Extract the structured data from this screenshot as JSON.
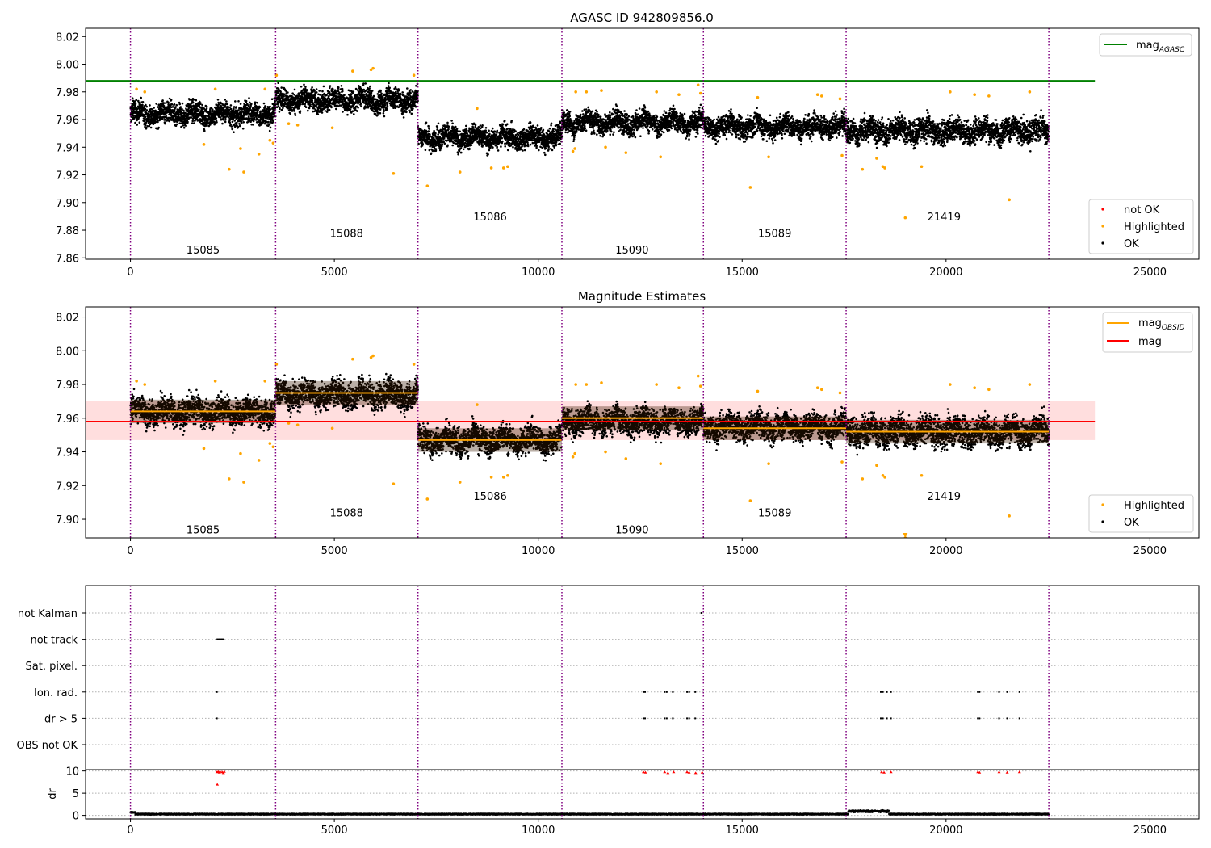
{
  "chart_data": [
    {
      "type": "scatter",
      "title": "AGASC ID 942809856.0",
      "xlim": [
        -1100,
        26200
      ],
      "ylim": [
        7.859,
        8.026
      ],
      "xticks": [
        0,
        5000,
        10000,
        15000,
        20000,
        25000
      ],
      "xtick_labels": [
        "0",
        "5000",
        "10000",
        "15000",
        "20000",
        "25000"
      ],
      "yticks": [
        7.86,
        7.88,
        7.9,
        7.92,
        7.94,
        7.96,
        7.98,
        8.0,
        8.02
      ],
      "ytick_labels": [
        "7.86",
        "7.88",
        "7.90",
        "7.92",
        "7.94",
        "7.96",
        "7.98",
        "8.00",
        "8.02"
      ],
      "obs_boundaries": [
        0,
        3560,
        7050,
        10580,
        14050,
        17550,
        22520
      ],
      "obs_labels": [
        {
          "x": 1780,
          "y": 7.866,
          "text": "15085"
        },
        {
          "x": 5300,
          "y": 7.878,
          "text": "15088"
        },
        {
          "x": 8820,
          "y": 7.89,
          "text": "15086"
        },
        {
          "x": 12300,
          "y": 7.866,
          "text": "15090"
        },
        {
          "x": 15800,
          "y": 7.878,
          "text": "15089"
        },
        {
          "x": 19950,
          "y": 7.89,
          "text": "21419"
        }
      ],
      "segments": [
        {
          "x0": 0,
          "x1": 3560,
          "level": 7.964,
          "spread": 0.0055
        },
        {
          "x0": 3560,
          "x1": 7050,
          "level": 7.974,
          "spread": 0.0055
        },
        {
          "x0": 7050,
          "x1": 10580,
          "level": 7.947,
          "spread": 0.0055
        },
        {
          "x0": 10580,
          "x1": 14050,
          "level": 7.958,
          "spread": 0.0055
        },
        {
          "x0": 14050,
          "x1": 17550,
          "level": 7.955,
          "spread": 0.0055
        },
        {
          "x0": 17550,
          "x1": 22520,
          "level": 7.952,
          "spread": 0.006
        }
      ],
      "highlighted_points": [
        [
          150,
          7.982
        ],
        [
          350,
          7.98
        ],
        [
          1800,
          7.942
        ],
        [
          2080,
          7.982
        ],
        [
          2420,
          7.924
        ],
        [
          2700,
          7.939
        ],
        [
          2780,
          7.922
        ],
        [
          3150,
          7.935
        ],
        [
          3300,
          7.982
        ],
        [
          3420,
          7.945
        ],
        [
          3500,
          7.943
        ],
        [
          3580,
          7.992
        ],
        [
          3880,
          7.957
        ],
        [
          4100,
          7.956
        ],
        [
          4950,
          7.954
        ],
        [
          5450,
          7.995
        ],
        [
          5900,
          7.996
        ],
        [
          5950,
          7.997
        ],
        [
          6450,
          7.921
        ],
        [
          6950,
          7.992
        ],
        [
          7280,
          7.912
        ],
        [
          8080,
          7.922
        ],
        [
          8500,
          7.968
        ],
        [
          8850,
          7.925
        ],
        [
          9150,
          7.925
        ],
        [
          9250,
          7.926
        ],
        [
          10850,
          7.937
        ],
        [
          10900,
          7.939
        ],
        [
          10920,
          7.98
        ],
        [
          11180,
          7.98
        ],
        [
          11550,
          7.981
        ],
        [
          11650,
          7.94
        ],
        [
          12150,
          7.936
        ],
        [
          12900,
          7.98
        ],
        [
          13000,
          7.933
        ],
        [
          13450,
          7.978
        ],
        [
          13920,
          7.985
        ],
        [
          13980,
          7.979
        ],
        [
          15200,
          7.911
        ],
        [
          15380,
          7.976
        ],
        [
          15650,
          7.933
        ],
        [
          16850,
          7.978
        ],
        [
          16950,
          7.977
        ],
        [
          17400,
          7.975
        ],
        [
          17450,
          7.934
        ],
        [
          17950,
          7.924
        ],
        [
          18300,
          7.932
        ],
        [
          18450,
          7.926
        ],
        [
          18500,
          7.925
        ],
        [
          19000,
          7.889
        ],
        [
          19400,
          7.926
        ],
        [
          20100,
          7.98
        ],
        [
          20700,
          7.978
        ],
        [
          21050,
          7.977
        ],
        [
          21550,
          7.902
        ],
        [
          22050,
          7.98
        ]
      ],
      "mag_agasc": 7.988,
      "mag_agasc_xrange": [
        -1100,
        23650
      ],
      "legend_top": [
        {
          "label": "mag",
          "sub": "AGASC",
          "color": "#008000"
        }
      ],
      "legend_bottom": [
        {
          "label": "not OK",
          "color": "#ff0000"
        },
        {
          "label": "Highlighted",
          "color": "#ffa500"
        },
        {
          "label": "OK",
          "color": "#000000"
        }
      ]
    },
    {
      "type": "scatter",
      "title": "Magnitude Estimates",
      "xlim": [
        -1100,
        26200
      ],
      "ylim": [
        7.889,
        8.026
      ],
      "xticks": [
        0,
        5000,
        10000,
        15000,
        20000,
        25000
      ],
      "xtick_labels": [
        "0",
        "5000",
        "10000",
        "15000",
        "20000",
        "25000"
      ],
      "yticks": [
        7.9,
        7.92,
        7.94,
        7.96,
        7.98,
        8.0,
        8.02
      ],
      "ytick_labels": [
        "7.90",
        "7.92",
        "7.94",
        "7.96",
        "7.98",
        "8.00",
        "8.02"
      ],
      "obs_labels": [
        {
          "x": 1780,
          "y": 7.894,
          "text": "15085"
        },
        {
          "x": 5300,
          "y": 7.904,
          "text": "15088"
        },
        {
          "x": 8820,
          "y": 7.914,
          "text": "15086"
        },
        {
          "x": 12300,
          "y": 7.894,
          "text": "15090"
        },
        {
          "x": 15800,
          "y": 7.904,
          "text": "15089"
        },
        {
          "x": 19950,
          "y": 7.914,
          "text": "21419"
        }
      ],
      "mag": 7.958,
      "mag_band": [
        7.947,
        7.97
      ],
      "mag_xrange": [
        -1100,
        23650
      ],
      "mag_obsid": [
        7.964,
        7.975,
        7.947,
        7.96,
        7.954,
        7.952
      ],
      "legend_top": [
        {
          "label": "mag",
          "sub": "OBSID",
          "color": "#ffa500"
        },
        {
          "label": "mag",
          "sub": "",
          "color": "#ff0000"
        }
      ],
      "legend_bottom": [
        {
          "label": "Highlighted",
          "color": "#ffa500"
        },
        {
          "label": "OK",
          "color": "#000000"
        }
      ]
    },
    {
      "type": "scatter",
      "title": "",
      "xlim": [
        -1100,
        26200
      ],
      "categories": [
        "not Kalman",
        "not track",
        "Sat. pixel.",
        "Ion. rad.",
        "dr > 5",
        "OBS not OK"
      ],
      "flags": {
        "not Kalman": [
          14000
        ],
        "not track": [
          2130,
          2160,
          2190,
          2220,
          2250,
          2280
        ],
        "Sat. pixel.": [],
        "Ion. rad.": [
          2120,
          12580,
          12620,
          13100,
          13150,
          13300,
          13650,
          13700,
          13850,
          18400,
          18450,
          18550,
          18650,
          20780,
          20820,
          21300,
          21500,
          21800
        ],
        "dr > 5": [
          2120,
          12580,
          12620,
          13100,
          13150,
          13300,
          13650,
          13700,
          13850,
          18400,
          18450,
          18550,
          18650,
          20780,
          20820,
          21300,
          21500,
          21800
        ],
        "OBS not OK": []
      },
      "dr": {
        "ylabel": "dr",
        "yticks": [
          0,
          5,
          10
        ],
        "ytick_labels": [
          "0",
          "5",
          "10"
        ],
        "ylim": [
          -0.8,
          10.3
        ],
        "clip": 10,
        "red_points": [
          [
            2120,
            9.8
          ],
          [
            2150,
            9.9
          ],
          [
            2180,
            9.7
          ],
          [
            2200,
            9.9
          ],
          [
            2250,
            9.8
          ],
          [
            2280,
            9.6
          ],
          [
            2300,
            9.9
          ],
          [
            2130,
            7.0
          ],
          [
            12580,
            9.8
          ],
          [
            12630,
            9.7
          ],
          [
            13100,
            9.8
          ],
          [
            13180,
            9.6
          ],
          [
            13320,
            9.8
          ],
          [
            13650,
            9.8
          ],
          [
            13700,
            9.7
          ],
          [
            13860,
            9.6
          ],
          [
            14020,
            9.7
          ],
          [
            18420,
            9.8
          ],
          [
            18480,
            9.7
          ],
          [
            18650,
            9.8
          ],
          [
            20780,
            9.8
          ],
          [
            20820,
            9.7
          ],
          [
            21300,
            9.8
          ],
          [
            21500,
            9.7
          ],
          [
            21800,
            9.8
          ]
        ]
      }
    }
  ]
}
